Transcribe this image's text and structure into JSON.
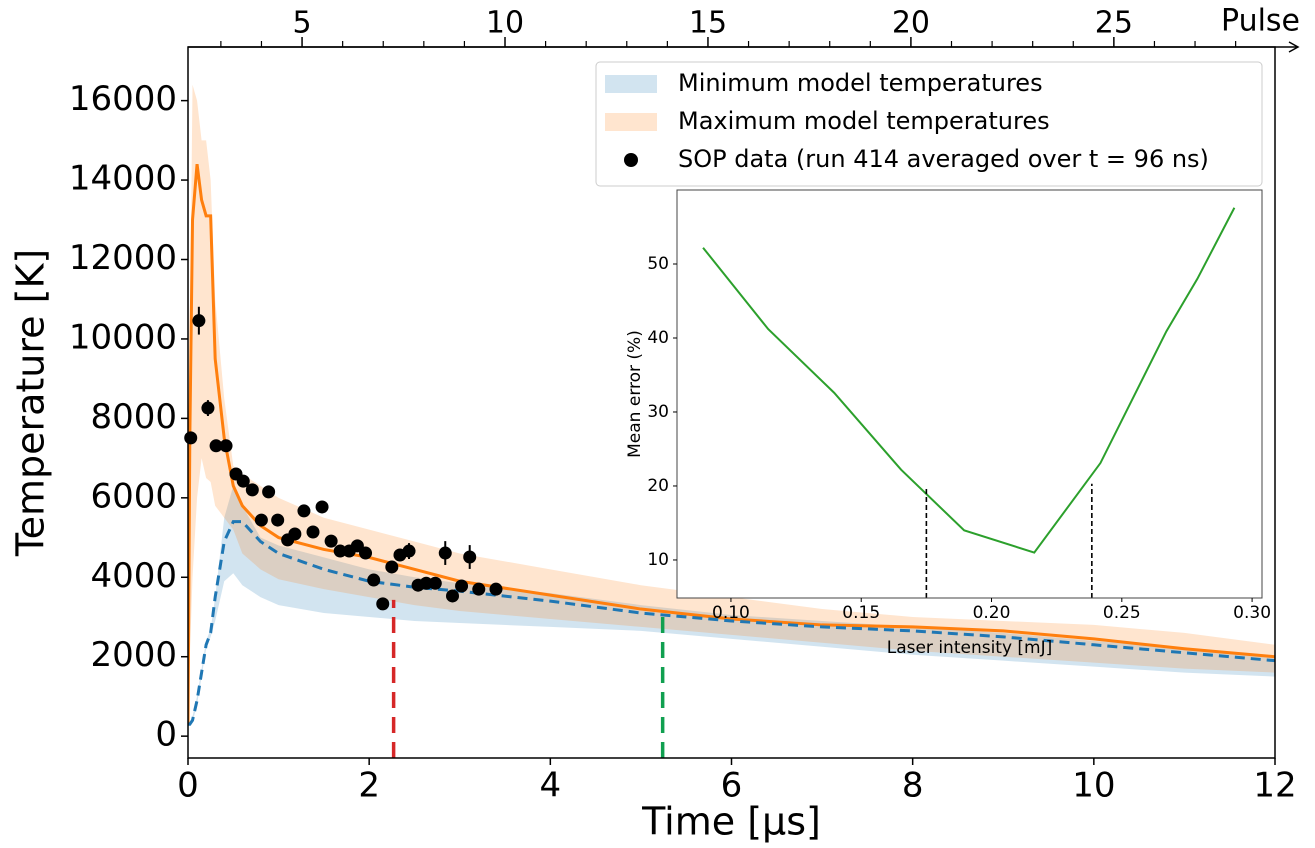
{
  "chart_data": [
    {
      "type": "line",
      "xlabel": "Time [µs]",
      "ylabel": "Temperature [K]",
      "xlim": [
        0,
        12
      ],
      "ylim": [
        -550,
        17350
      ],
      "xticks": [
        0,
        2,
        4,
        6,
        8,
        10,
        12
      ],
      "yticks": [
        0,
        2000,
        4000,
        6000,
        8000,
        10000,
        12000,
        14000,
        16000
      ],
      "legend": "upper right",
      "x": [
        0,
        0.02,
        0.05,
        0.1,
        0.15,
        0.2,
        0.25,
        0.3,
        0.4,
        0.5,
        0.6,
        0.8,
        1,
        1.5,
        2,
        2.5,
        3,
        4,
        5,
        6,
        7,
        8,
        9,
        10,
        11,
        12
      ],
      "bands": [
        {
          "name": "Minimum model temperatures",
          "color": "#1f77b4",
          "alpha": 0.2,
          "upper": [
            300,
            300,
            500,
            1000,
            1700,
            2400,
            2700,
            3500,
            5500,
            6300,
            5800,
            5000,
            4800,
            4500,
            4200,
            4000,
            3850,
            3600,
            3300,
            3050,
            2900,
            2750,
            2600,
            2400,
            2200,
            2000
          ],
          "lower": [
            300,
            300,
            350,
            800,
            1500,
            2200,
            2500,
            2900,
            3900,
            4100,
            3800,
            3500,
            3300,
            3100,
            3000,
            2900,
            2850,
            2750,
            2650,
            2450,
            2250,
            2050,
            1900,
            1750,
            1600,
            1500
          ]
        },
        {
          "name": "Maximum model temperatures",
          "color": "#ff7f0e",
          "alpha": 0.2,
          "upper": [
            300,
            10000,
            16400,
            16000,
            15000,
            15000,
            14000,
            11000,
            8500,
            6800,
            6600,
            6300,
            6000,
            5500,
            5200,
            4900,
            4600,
            4200,
            3800,
            3500,
            3200,
            3000,
            2900,
            2800,
            2600,
            2300
          ],
          "lower": [
            300,
            2000,
            4000,
            6000,
            7000,
            6500,
            6400,
            5800,
            5500,
            5200,
            4600,
            4200,
            3950,
            3700,
            3500,
            3300,
            3150,
            2950,
            2750,
            2550,
            2350,
            2150,
            2000,
            1850,
            1700,
            1600
          ]
        }
      ],
      "series": [
        {
          "color": "#ff7f0e",
          "style": "solid",
          "values": [
            300,
            7500,
            13000,
            14400,
            13500,
            13100,
            13100,
            9500,
            7500,
            6300,
            5800,
            5300,
            5000,
            4700,
            4500,
            4200,
            3900,
            3550,
            3200,
            2950,
            2800,
            2750,
            2650,
            2450,
            2200,
            2000
          ]
        },
        {
          "color": "#1f77b4",
          "style": "dashed",
          "values": [
            300,
            300,
            400,
            900,
            1600,
            2300,
            2600,
            3500,
            4900,
            5400,
            5400,
            4900,
            4600,
            4200,
            3900,
            3750,
            3650,
            3400,
            3100,
            2900,
            2750,
            2650,
            2500,
            2300,
            2100,
            1900
          ]
        }
      ],
      "scatter": {
        "name": "SOP data (run 414 averaged over t = 96 ns)",
        "color": "#000000",
        "x": [
          0.03,
          0.12,
          0.22,
          0.31,
          0.42,
          0.53,
          0.61,
          0.71,
          0.81,
          0.89,
          0.99,
          1.1,
          1.18,
          1.28,
          1.38,
          1.48,
          1.58,
          1.68,
          1.78,
          1.87,
          1.96,
          2.05,
          2.15,
          2.25,
          2.34,
          2.44,
          2.54,
          2.63,
          2.73,
          2.84,
          2.92,
          3.02,
          3.11,
          3.21,
          3.4
        ],
        "values": [
          7510,
          10460,
          8260,
          7310,
          7310,
          6600,
          6420,
          6200,
          5440,
          6150,
          5440,
          4940,
          5090,
          5670,
          5140,
          5770,
          4910,
          4660,
          4660,
          4790,
          4610,
          3930,
          3330,
          4260,
          4560,
          4660,
          3800,
          3850,
          3850,
          4610,
          3530,
          3780,
          4510,
          3700,
          3700
        ],
        "errors": [
          150,
          350,
          200,
          150,
          150,
          150,
          120,
          120,
          120,
          120,
          120,
          120,
          120,
          120,
          120,
          120,
          120,
          120,
          120,
          120,
          120,
          120,
          120,
          150,
          150,
          200,
          120,
          120,
          120,
          300,
          120,
          120,
          300,
          120,
          120
        ]
      },
      "vlines": [
        {
          "x": 2.27,
          "ymax": 3430,
          "color": "#d62728"
        },
        {
          "x": 5.24,
          "ymax": 3170,
          "color": "#10a050"
        }
      ],
      "top_axis": {
        "label": "Pulse",
        "xlim": [
          2.19,
          28.97
        ],
        "xticks": [
          5,
          10,
          15,
          20,
          25
        ],
        "minor_ticks": [
          3,
          4,
          6,
          7,
          8,
          9,
          11,
          12,
          13,
          14,
          16,
          17,
          18,
          19,
          21,
          22,
          23,
          24,
          26,
          27,
          28
        ]
      }
    },
    {
      "type": "line",
      "xlabel": "Laser intensity [mJ]",
      "ylabel": "Mean error (%)",
      "xlim": [
        0.0793,
        0.3038
      ],
      "ylim": [
        4.86,
        60
      ],
      "xticks": [
        {
          "value": 0.1,
          "label": "0.10"
        },
        {
          "value": 0.15,
          "label": "0.15"
        },
        {
          "value": 0.2,
          "label": "0.20"
        },
        {
          "value": 0.25,
          "label": "0.25"
        },
        {
          "value": 0.3,
          "label": "0.30"
        }
      ],
      "yticks": [
        10,
        20,
        30,
        40,
        50
      ],
      "series": [
        {
          "color": "#2ca02c",
          "style": "solid",
          "x": [
            0.0893,
            0.1143,
            0.1396,
            0.1653,
            0.1895,
            0.2164,
            0.2418,
            0.2671,
            0.279,
            0.2932
          ],
          "values": [
            52.2,
            41.2,
            32.6,
            22.2,
            14.0,
            11.0,
            23.1,
            40.9,
            48.0,
            57.6
          ]
        }
      ],
      "vlines": [
        {
          "x": 0.175,
          "ymax": 19.6,
          "color": "#000000"
        },
        {
          "x": 0.2385,
          "ymax": 20.3,
          "color": "#000000"
        }
      ]
    }
  ]
}
